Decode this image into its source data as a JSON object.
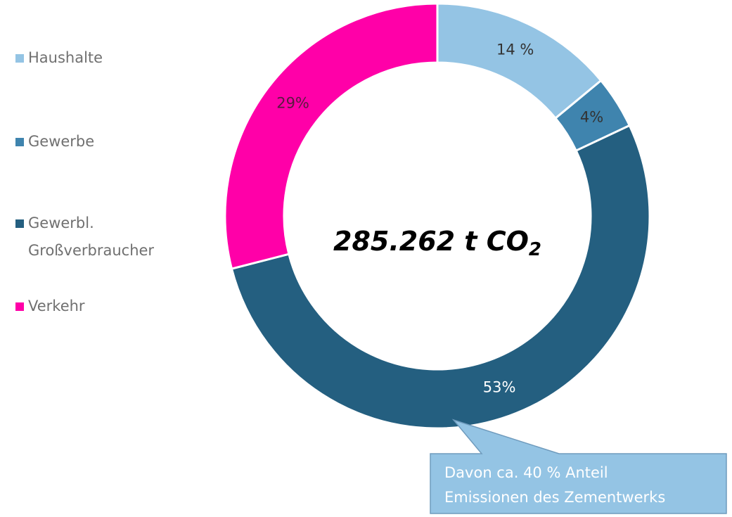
{
  "chart_data": {
    "type": "pie",
    "categories": [
      "Haushalte",
      "Gewerbe",
      "Gewerbl. Großverbraucher",
      "Verkehr"
    ],
    "values": [
      14,
      4,
      53,
      29
    ],
    "value_labels": [
      "14 %",
      "4%",
      "53%",
      "29%"
    ],
    "colors": [
      "#94c4e4",
      "#3f84ae",
      "#245f80",
      "#ff00a8"
    ],
    "center_label": {
      "text": "285.262 t CO",
      "subscript": "2"
    },
    "annotation": {
      "lines": [
        "Davon ca. 40 % Anteil",
        "Emissionen des Zementwerks"
      ]
    },
    "legend": "left"
  }
}
